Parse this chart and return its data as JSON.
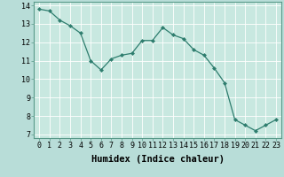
{
  "x": [
    0,
    1,
    2,
    3,
    4,
    5,
    6,
    7,
    8,
    9,
    10,
    11,
    12,
    13,
    14,
    15,
    16,
    17,
    18,
    19,
    20,
    21,
    22,
    23
  ],
  "y": [
    13.8,
    13.7,
    13.2,
    12.9,
    12.5,
    11.0,
    10.5,
    11.1,
    11.3,
    11.4,
    12.1,
    12.1,
    12.8,
    12.4,
    12.2,
    11.6,
    11.3,
    10.6,
    9.8,
    7.8,
    7.5,
    7.2,
    7.5,
    7.8
  ],
  "xlabel": "Humidex (Indice chaleur)",
  "xlim": [
    -0.5,
    23.5
  ],
  "ylim": [
    6.8,
    14.2
  ],
  "line_color": "#2e7d6e",
  "marker_color": "#2e7d6e",
  "bg_plot": "#c8e8e0",
  "bg_fig": "#b8ddd8",
  "grid_color": "#ffffff",
  "xtick_labels": [
    "0",
    "1",
    "2",
    "3",
    "4",
    "5",
    "6",
    "7",
    "8",
    "9",
    "10",
    "11",
    "12",
    "13",
    "14",
    "15",
    "16",
    "17",
    "18",
    "19",
    "20",
    "21",
    "22",
    "23"
  ],
  "yticks": [
    7,
    8,
    9,
    10,
    11,
    12,
    13,
    14
  ],
  "tick_fontsize": 6,
  "label_fontsize": 7.5
}
